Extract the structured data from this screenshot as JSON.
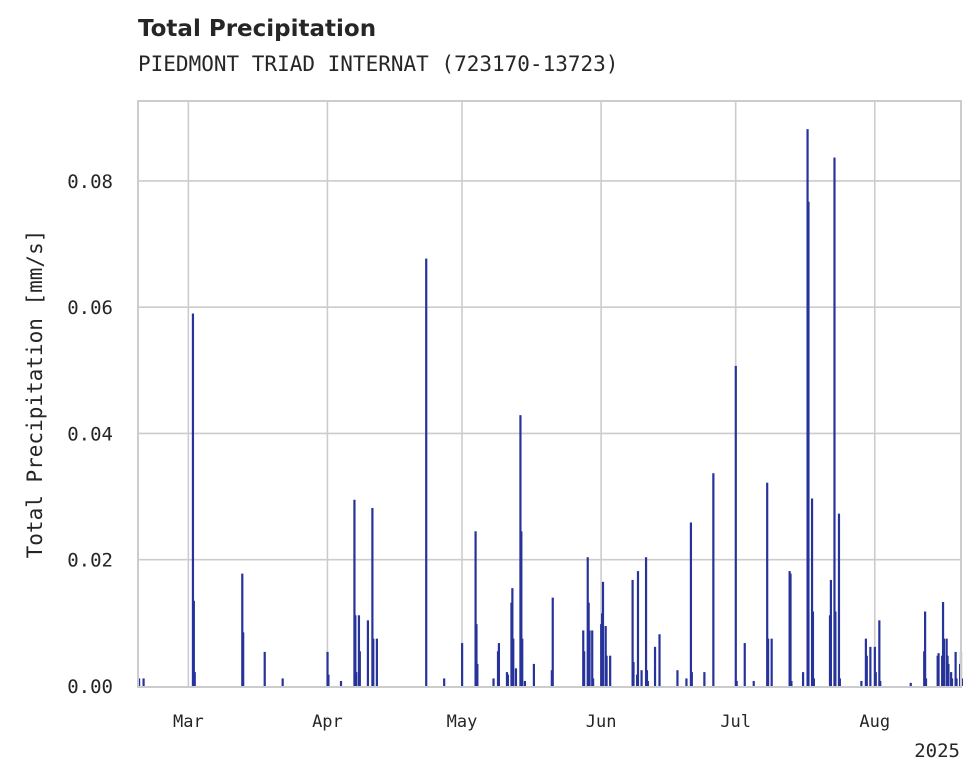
{
  "chart_data": {
    "type": "bar",
    "title": "Total Precipitation",
    "subtitle": "PIEDMONT TRIAD INTERNAT (723170-13723)",
    "ylabel": "Total Precipitation [mm/s]",
    "xlabel": "",
    "x_tick_labels": [
      "Mar",
      "Apr",
      "May",
      "Jun",
      "Jul",
      "Aug"
    ],
    "x_year_label": "2025",
    "y_tick_labels": [
      "0.00",
      "0.02",
      "0.04",
      "0.06",
      "0.08"
    ],
    "y_ticks": [
      0,
      0.02,
      0.04,
      0.06,
      0.08
    ],
    "ylim": [
      0,
      0.0925
    ],
    "xlim": [
      "2025-02-18",
      "2025-08-20"
    ],
    "grid": true,
    "color": "#27339a",
    "series": [
      {
        "values": [
          [
            "2025-02-18",
            0.0012
          ],
          [
            "2025-02-19",
            0.0012
          ],
          [
            "2025-03-02",
            0.059
          ],
          [
            "2025-03-02",
            0.0135
          ],
          [
            "2025-03-02",
            0.0022
          ],
          [
            "2025-03-13",
            0.0178
          ],
          [
            "2025-03-13",
            0.0085
          ],
          [
            "2025-03-18",
            0.0054
          ],
          [
            "2025-03-22",
            0.0012
          ],
          [
            "2025-04-01",
            0.0054
          ],
          [
            "2025-04-01",
            0.0018
          ],
          [
            "2025-04-04",
            0.0008
          ],
          [
            "2025-04-07",
            0.0295
          ],
          [
            "2025-04-07",
            0.0112
          ],
          [
            "2025-04-07",
            0.0022
          ],
          [
            "2025-04-08",
            0.0112
          ],
          [
            "2025-04-08",
            0.0055
          ],
          [
            "2025-04-10",
            0.0104
          ],
          [
            "2025-04-11",
            0.0282
          ],
          [
            "2025-04-11",
            0.0075
          ],
          [
            "2025-04-12",
            0.0075
          ],
          [
            "2025-04-23",
            0.0677
          ],
          [
            "2025-04-27",
            0.0012
          ],
          [
            "2025-05-01",
            0.0068
          ],
          [
            "2025-05-04",
            0.0245
          ],
          [
            "2025-05-04",
            0.0098
          ],
          [
            "2025-05-04",
            0.0035
          ],
          [
            "2025-05-08",
            0.0012
          ],
          [
            "2025-05-09",
            0.0055
          ],
          [
            "2025-05-09",
            0.0068
          ],
          [
            "2025-05-11",
            0.0022
          ],
          [
            "2025-05-11",
            0.0018
          ],
          [
            "2025-05-12",
            0.0132
          ],
          [
            "2025-05-12",
            0.0155
          ],
          [
            "2025-05-12",
            0.0075
          ],
          [
            "2025-05-13",
            0.0028
          ],
          [
            "2025-05-14",
            0.0429
          ],
          [
            "2025-05-14",
            0.0245
          ],
          [
            "2025-05-14",
            0.0075
          ],
          [
            "2025-05-15",
            0.0008
          ],
          [
            "2025-05-17",
            0.0035
          ],
          [
            "2025-05-21",
            0.0025
          ],
          [
            "2025-05-21",
            0.014
          ],
          [
            "2025-05-28",
            0.0088
          ],
          [
            "2025-05-28",
            0.0055
          ],
          [
            "2025-05-29",
            0.0204
          ],
          [
            "2025-05-29",
            0.0132
          ],
          [
            "2025-05-29",
            0.0088
          ],
          [
            "2025-05-30",
            0.0088
          ],
          [
            "2025-05-30",
            0.0012
          ],
          [
            "2025-06-01",
            0.0098
          ],
          [
            "2025-06-01",
            0.0115
          ],
          [
            "2025-06-01",
            0.0165
          ],
          [
            "2025-06-02",
            0.0095
          ],
          [
            "2025-06-02",
            0.0048
          ],
          [
            "2025-06-03",
            0.0048
          ],
          [
            "2025-06-08",
            0.0168
          ],
          [
            "2025-06-08",
            0.0038
          ],
          [
            "2025-06-09",
            0.0018
          ],
          [
            "2025-06-09",
            0.0182
          ],
          [
            "2025-06-10",
            0.0025
          ],
          [
            "2025-06-11",
            0.0204
          ],
          [
            "2025-06-11",
            0.0025
          ],
          [
            "2025-06-11",
            0.0008
          ],
          [
            "2025-06-13",
            0.0062
          ],
          [
            "2025-06-14",
            0.0082
          ],
          [
            "2025-06-18",
            0.0025
          ],
          [
            "2025-06-20",
            0.0012
          ],
          [
            "2025-06-21",
            0.0259
          ],
          [
            "2025-06-21",
            0.0022
          ],
          [
            "2025-06-24",
            0.0022
          ],
          [
            "2025-06-26",
            0.0337
          ],
          [
            "2025-07-01",
            0.0507
          ],
          [
            "2025-07-01",
            0.0008
          ],
          [
            "2025-07-03",
            0.0068
          ],
          [
            "2025-07-05",
            0.0008
          ],
          [
            "2025-07-08",
            0.0322
          ],
          [
            "2025-07-08",
            0.0075
          ],
          [
            "2025-07-09",
            0.0075
          ],
          [
            "2025-07-13",
            0.0182
          ],
          [
            "2025-07-13",
            0.0178
          ],
          [
            "2025-07-13",
            0.0008
          ],
          [
            "2025-07-16",
            0.0022
          ],
          [
            "2025-07-17",
            0.0882
          ],
          [
            "2025-07-17",
            0.0767
          ],
          [
            "2025-07-18",
            0.0297
          ],
          [
            "2025-07-18",
            0.0118
          ],
          [
            "2025-07-18",
            0.0012
          ],
          [
            "2025-07-22",
            0.0112
          ],
          [
            "2025-07-22",
            0.0168
          ],
          [
            "2025-07-23",
            0.0837
          ],
          [
            "2025-07-23",
            0.0118
          ],
          [
            "2025-07-24",
            0.0273
          ],
          [
            "2025-07-24",
            0.0012
          ],
          [
            "2025-07-29",
            0.0008
          ],
          [
            "2025-07-30",
            0.0075
          ],
          [
            "2025-07-30",
            0.0048
          ],
          [
            "2025-07-31",
            0.0062
          ],
          [
            "2025-08-01",
            0.0062
          ],
          [
            "2025-08-01",
            0.0022
          ],
          [
            "2025-08-02",
            0.0104
          ],
          [
            "2025-08-02",
            0.0008
          ],
          [
            "2025-08-09",
            0.0005
          ],
          [
            "2025-08-12",
            0.0055
          ],
          [
            "2025-08-12",
            0.0118
          ],
          [
            "2025-08-12",
            0.0012
          ],
          [
            "2025-08-15",
            0.0048
          ],
          [
            "2025-08-15",
            0.0052
          ],
          [
            "2025-08-16",
            0.0048
          ],
          [
            "2025-08-16",
            0.0133
          ],
          [
            "2025-08-16",
            0.0075
          ],
          [
            "2025-08-17",
            0.0075
          ],
          [
            "2025-08-17",
            0.0048
          ],
          [
            "2025-08-17",
            0.0035
          ],
          [
            "2025-08-18",
            0.0022
          ],
          [
            "2025-08-18",
            0.0012
          ],
          [
            "2025-08-19",
            0.0054
          ],
          [
            "2025-08-19",
            0.0012
          ],
          [
            "2025-08-20",
            0.0035
          ],
          [
            "2025-08-20",
            0.0054
          ],
          [
            "2025-08-20",
            0.0012
          ]
        ]
      }
    ]
  }
}
